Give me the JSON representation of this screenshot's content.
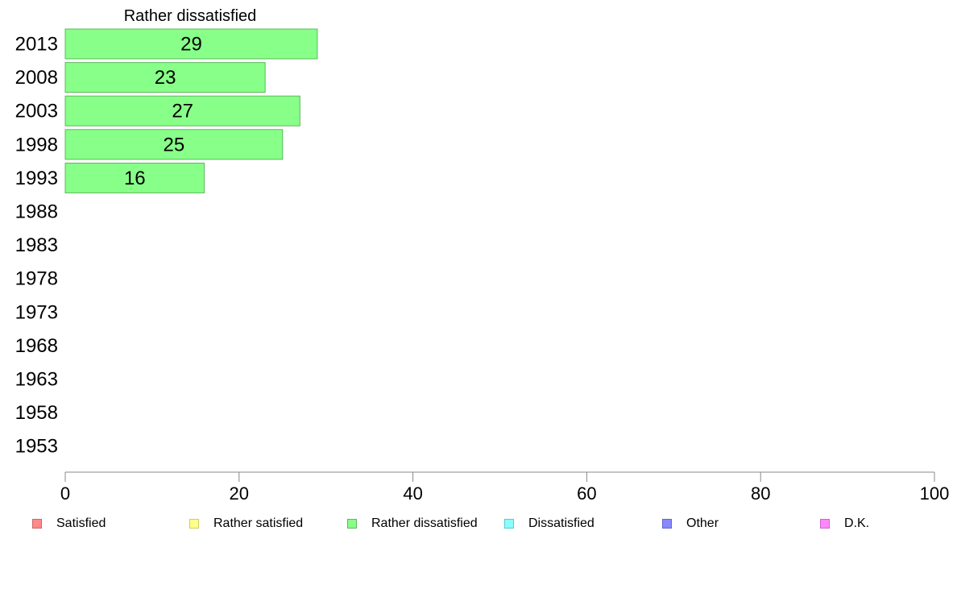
{
  "chart_data": {
    "type": "bar",
    "orientation": "horizontal",
    "title": "Rather dissatisfied",
    "categories": [
      "2013",
      "2008",
      "2003",
      "1998",
      "1993",
      "1988",
      "1983",
      "1978",
      "1973",
      "1968",
      "1963",
      "1958",
      "1953"
    ],
    "series": [
      {
        "name": "Rather dissatisfied",
        "values": [
          29,
          23,
          27,
          25,
          16,
          null,
          null,
          null,
          null,
          null,
          null,
          null,
          null
        ]
      }
    ],
    "data_labels": [
      "29",
      "23",
      "27",
      "25",
      "16"
    ],
    "xlim": [
      0,
      100
    ],
    "x_ticks": [
      "0",
      "20",
      "40",
      "60",
      "80",
      "100"
    ],
    "grid": false,
    "legend_position": "bottom",
    "bar_color": "#88ff88",
    "bar_border": "#5cb85c"
  },
  "legend": [
    {
      "label": "Satisfied",
      "color": "#ff8888",
      "border": "#cc6666"
    },
    {
      "label": "Rather satisfied",
      "color": "#ffff88",
      "border": "#cccc66"
    },
    {
      "label": "Rather dissatisfied",
      "color": "#88ff88",
      "border": "#5cb85c"
    },
    {
      "label": "Dissatisfied",
      "color": "#88ffff",
      "border": "#55cccc"
    },
    {
      "label": "Other",
      "color": "#8888ff",
      "border": "#6666cc"
    },
    {
      "label": "D.K.",
      "color": "#ff88ff",
      "border": "#cc66cc"
    }
  ]
}
